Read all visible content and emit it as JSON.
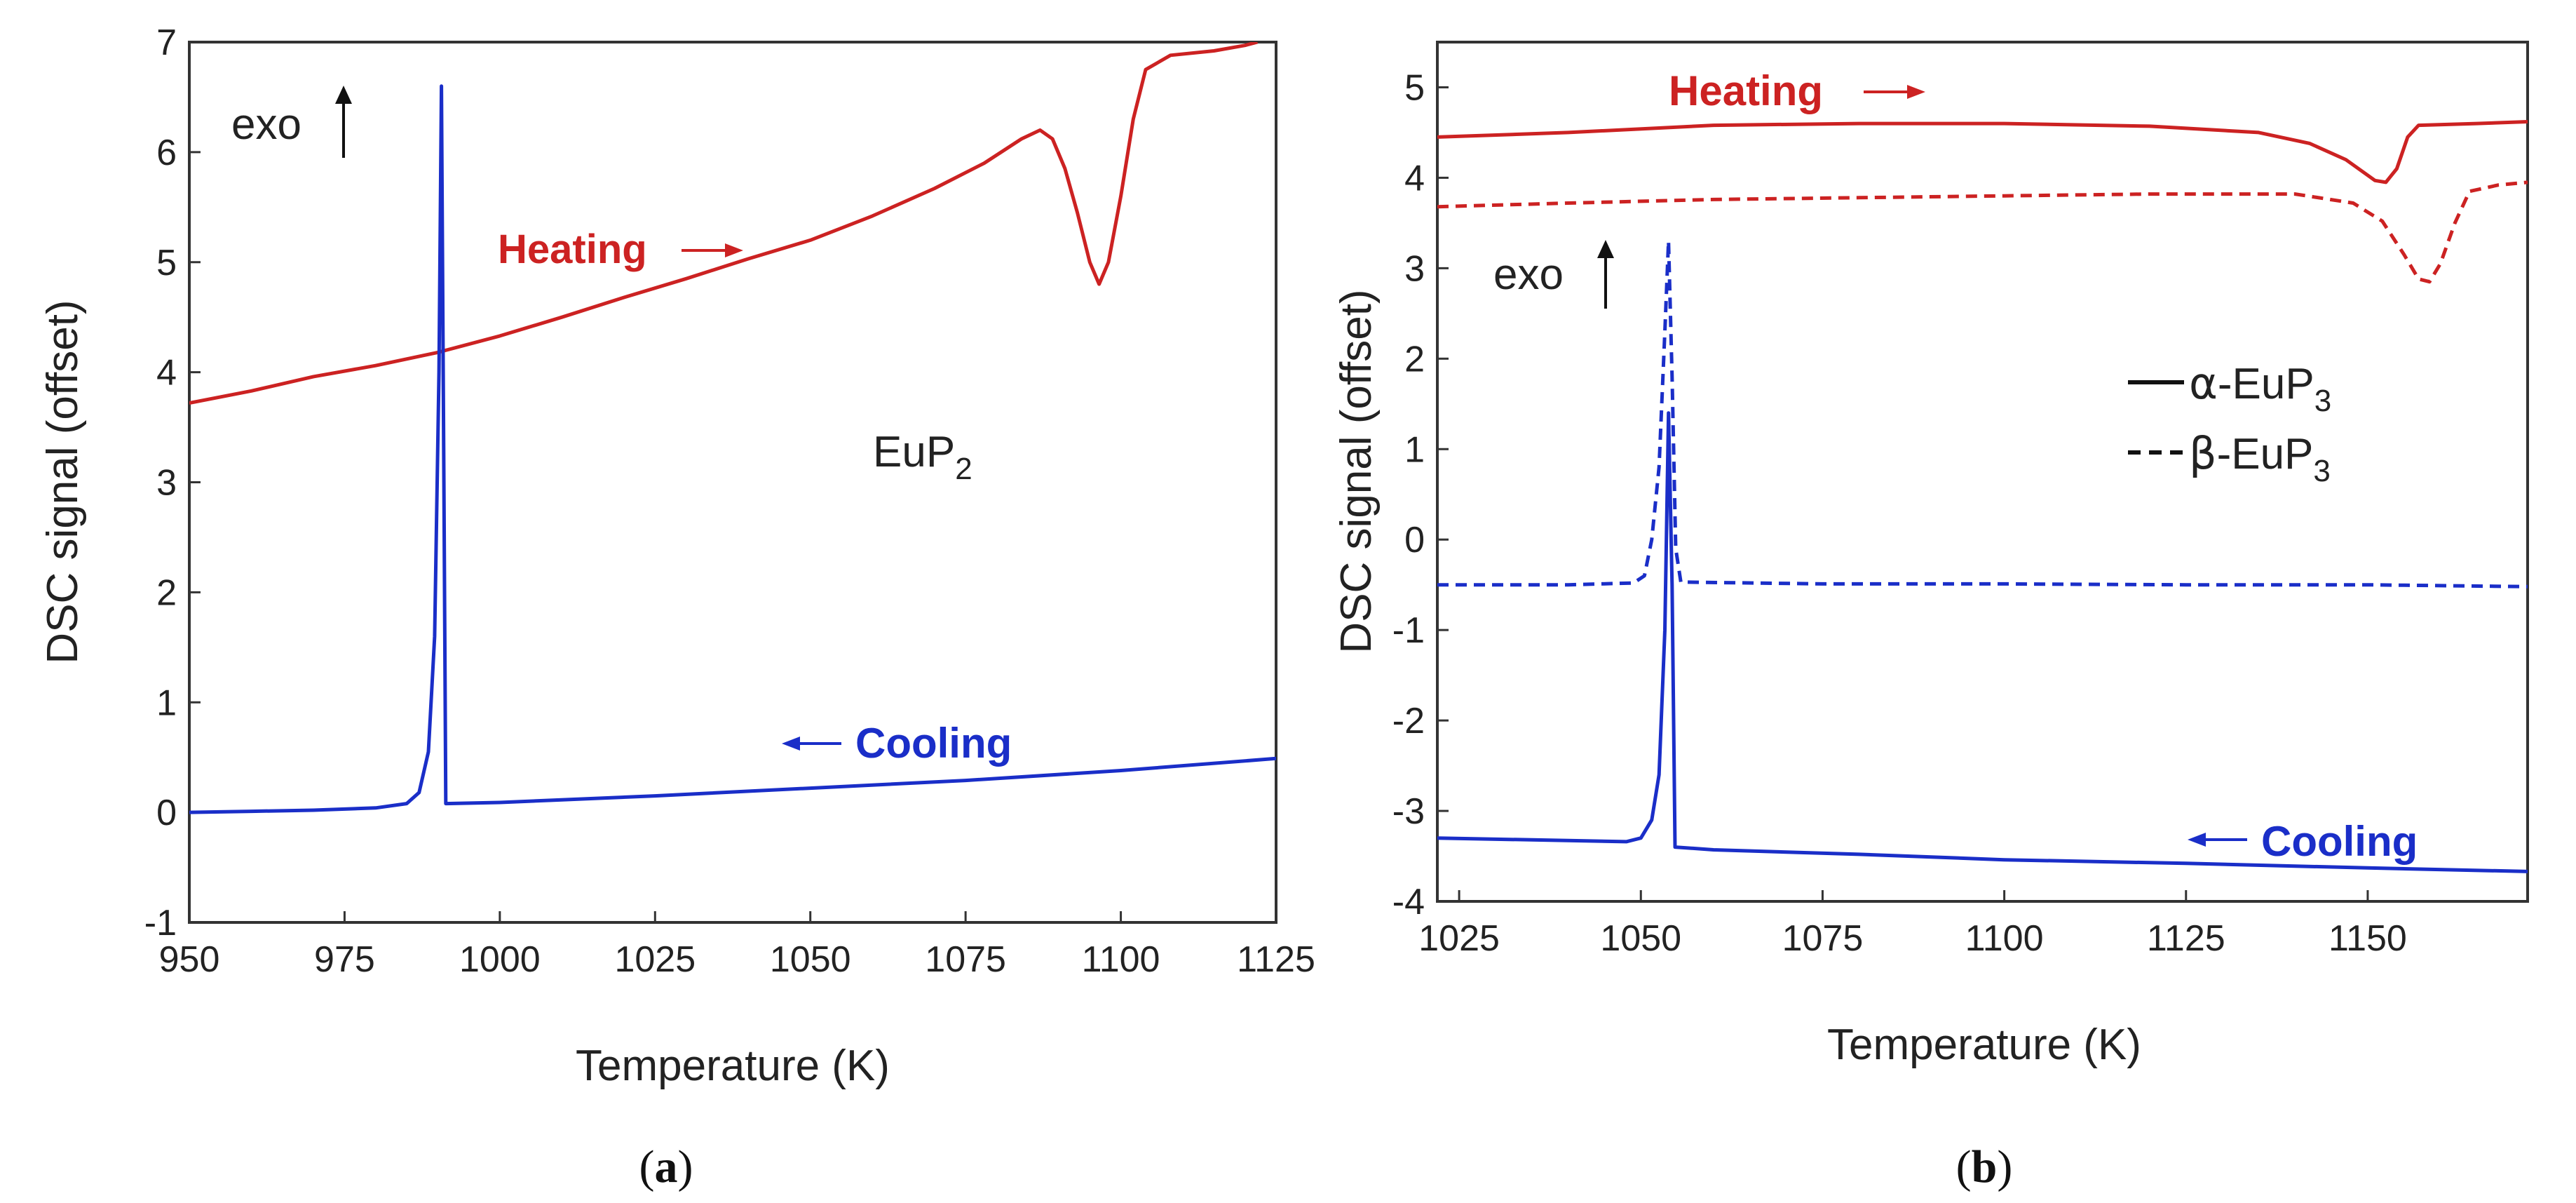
{
  "chart_data": [
    {
      "type": "line",
      "panel_label": {
        "open": "(",
        "letter": "a",
        "close": ")"
      },
      "xlabel": "Temperature (K)",
      "ylabel": "DSC signal (offset)",
      "xlim": [
        950,
        1125
      ],
      "ylim": [
        -1,
        7
      ],
      "xticks": [
        950,
        975,
        1000,
        1025,
        1050,
        1075,
        1100,
        1125
      ],
      "yticks": [
        -1,
        0,
        1,
        2,
        3,
        4,
        5,
        6,
        7
      ],
      "annotations": {
        "exo": "exo",
        "sample": "EuP",
        "sample_sub": "2",
        "heating": "Heating",
        "cooling": "Cooling"
      },
      "series": [
        {
          "name": "Heating",
          "color": "#cc2222",
          "dash": "solid",
          "points": [
            [
              950,
              3.72
            ],
            [
              960,
              3.83
            ],
            [
              970,
              3.96
            ],
            [
              980,
              4.06
            ],
            [
              990,
              4.18
            ],
            [
              1000,
              4.33
            ],
            [
              1010,
              4.5
            ],
            [
              1020,
              4.68
            ],
            [
              1030,
              4.85
            ],
            [
              1040,
              5.03
            ],
            [
              1050,
              5.2
            ],
            [
              1060,
              5.42
            ],
            [
              1070,
              5.67
            ],
            [
              1078,
              5.9
            ],
            [
              1084,
              6.12
            ],
            [
              1087,
              6.2
            ],
            [
              1089,
              6.12
            ],
            [
              1091,
              5.85
            ],
            [
              1093,
              5.45
            ],
            [
              1095,
              5.0
            ],
            [
              1096.5,
              4.8
            ],
            [
              1098,
              5.0
            ],
            [
              1100,
              5.6
            ],
            [
              1102,
              6.3
            ],
            [
              1104,
              6.75
            ],
            [
              1108,
              6.88
            ],
            [
              1115,
              6.92
            ],
            [
              1120,
              6.97
            ],
            [
              1122,
              7.0
            ]
          ]
        },
        {
          "name": "Cooling",
          "color": "#1a2ec8",
          "dash": "solid",
          "points": [
            [
              950,
              0.0
            ],
            [
              960,
              0.01
            ],
            [
              970,
              0.02
            ],
            [
              980,
              0.04
            ],
            [
              985,
              0.08
            ],
            [
              987,
              0.18
            ],
            [
              988.5,
              0.55
            ],
            [
              989.5,
              1.6
            ],
            [
              990.2,
              4.0
            ],
            [
              990.6,
              6.6
            ],
            [
              991.0,
              3.0
            ],
            [
              991.3,
              0.08
            ],
            [
              1000,
              0.09
            ],
            [
              1025,
              0.15
            ],
            [
              1050,
              0.22
            ],
            [
              1075,
              0.29
            ],
            [
              1100,
              0.38
            ],
            [
              1125,
              0.49
            ]
          ]
        }
      ]
    },
    {
      "type": "line",
      "panel_label": {
        "open": "(",
        "letter": "b",
        "close": ")"
      },
      "xlabel": "Temperature (K)",
      "ylabel": "DSC signal (offset)",
      "xlim": [
        1022,
        1172
      ],
      "ylim": [
        -4,
        5.5
      ],
      "xticks": [
        1025,
        1050,
        1075,
        1100,
        1125,
        1150
      ],
      "yticks": [
        -4,
        -3,
        -2,
        -1,
        0,
        1,
        2,
        3,
        4,
        5
      ],
      "annotations": {
        "exo": "exo",
        "heating": "Heating",
        "cooling": "Cooling"
      },
      "legend": [
        {
          "greek": "α",
          "label": "-EuP",
          "sub": "3",
          "dash": "solid"
        },
        {
          "greek": "β",
          "label": "-EuP",
          "sub": "3",
          "dash": "dashed"
        }
      ],
      "series": [
        {
          "name": "α-EuP3 heating",
          "color": "#cc2222",
          "dash": "solid",
          "points": [
            [
              1022,
              4.45
            ],
            [
              1040,
              4.5
            ],
            [
              1060,
              4.58
            ],
            [
              1080,
              4.6
            ],
            [
              1100,
              4.6
            ],
            [
              1120,
              4.57
            ],
            [
              1135,
              4.5
            ],
            [
              1142,
              4.38
            ],
            [
              1147,
              4.2
            ],
            [
              1151,
              3.97
            ],
            [
              1152.5,
              3.95
            ],
            [
              1154,
              4.1
            ],
            [
              1155.5,
              4.45
            ],
            [
              1157,
              4.58
            ],
            [
              1165,
              4.6
            ],
            [
              1172,
              4.62
            ]
          ]
        },
        {
          "name": "β-EuP3 heating",
          "color": "#cc2222",
          "dash": "dashed",
          "points": [
            [
              1022,
              3.68
            ],
            [
              1040,
              3.72
            ],
            [
              1060,
              3.76
            ],
            [
              1080,
              3.78
            ],
            [
              1100,
              3.8
            ],
            [
              1120,
              3.82
            ],
            [
              1140,
              3.82
            ],
            [
              1148,
              3.72
            ],
            [
              1152,
              3.52
            ],
            [
              1155,
              3.15
            ],
            [
              1157,
              2.88
            ],
            [
              1158.5,
              2.85
            ],
            [
              1160,
              3.05
            ],
            [
              1162,
              3.5
            ],
            [
              1164,
              3.85
            ],
            [
              1168,
              3.92
            ],
            [
              1172,
              3.95
            ]
          ]
        },
        {
          "name": "α-EuP3 cooling",
          "color": "#1a2ec8",
          "dash": "solid",
          "points": [
            [
              1022,
              -3.3
            ],
            [
              1035,
              -3.32
            ],
            [
              1048,
              -3.34
            ],
            [
              1050,
              -3.3
            ],
            [
              1051.5,
              -3.1
            ],
            [
              1052.5,
              -2.6
            ],
            [
              1053.3,
              -1.0
            ],
            [
              1053.8,
              1.4
            ],
            [
              1054.3,
              -0.5
            ],
            [
              1054.7,
              -3.4
            ],
            [
              1060,
              -3.43
            ],
            [
              1080,
              -3.48
            ],
            [
              1100,
              -3.54
            ],
            [
              1125,
              -3.58
            ],
            [
              1150,
              -3.63
            ],
            [
              1172,
              -3.67
            ]
          ]
        },
        {
          "name": "β-EuP3 cooling",
          "color": "#1a2ec8",
          "dash": "dashed",
          "points": [
            [
              1022,
              -0.5
            ],
            [
              1040,
              -0.5
            ],
            [
              1049,
              -0.48
            ],
            [
              1050.5,
              -0.4
            ],
            [
              1051.5,
              0.0
            ],
            [
              1052.5,
              0.8
            ],
            [
              1053.3,
              2.3
            ],
            [
              1053.8,
              3.3
            ],
            [
              1054.3,
              1.8
            ],
            [
              1054.8,
              -0.1
            ],
            [
              1055.5,
              -0.47
            ],
            [
              1075,
              -0.49
            ],
            [
              1100,
              -0.49
            ],
            [
              1125,
              -0.5
            ],
            [
              1150,
              -0.5
            ],
            [
              1172,
              -0.52
            ]
          ]
        }
      ]
    }
  ]
}
